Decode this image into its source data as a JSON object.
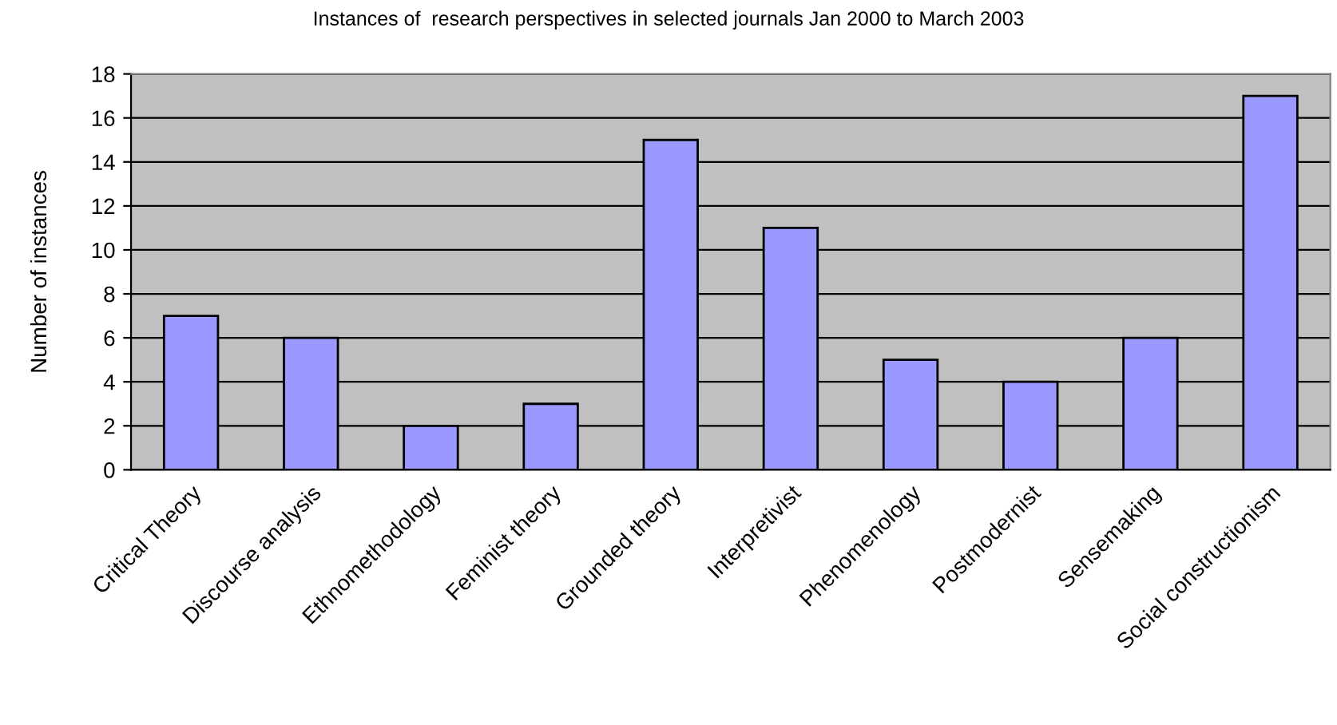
{
  "chart_data": {
    "type": "bar",
    "title": "Instances of  research perspectives in selected journals Jan 2000 to March 2003",
    "ylabel": "Number of instances",
    "categories": [
      "Critical Theory",
      "Discourse analysis",
      "Ethnomethodology",
      "Feminist theory",
      "Grounded theory",
      "Interpretivist",
      "Phenomenology",
      "Postmodernist",
      "Sensemaking",
      "Social constructionism"
    ],
    "values": [
      7,
      6,
      2,
      3,
      15,
      11,
      5,
      4,
      6,
      17
    ],
    "color": "#9999ff",
    "ylim": [
      0,
      18
    ],
    "yticks": [
      0,
      2,
      4,
      6,
      8,
      10,
      12,
      14,
      16,
      18
    ],
    "grid": "y"
  }
}
